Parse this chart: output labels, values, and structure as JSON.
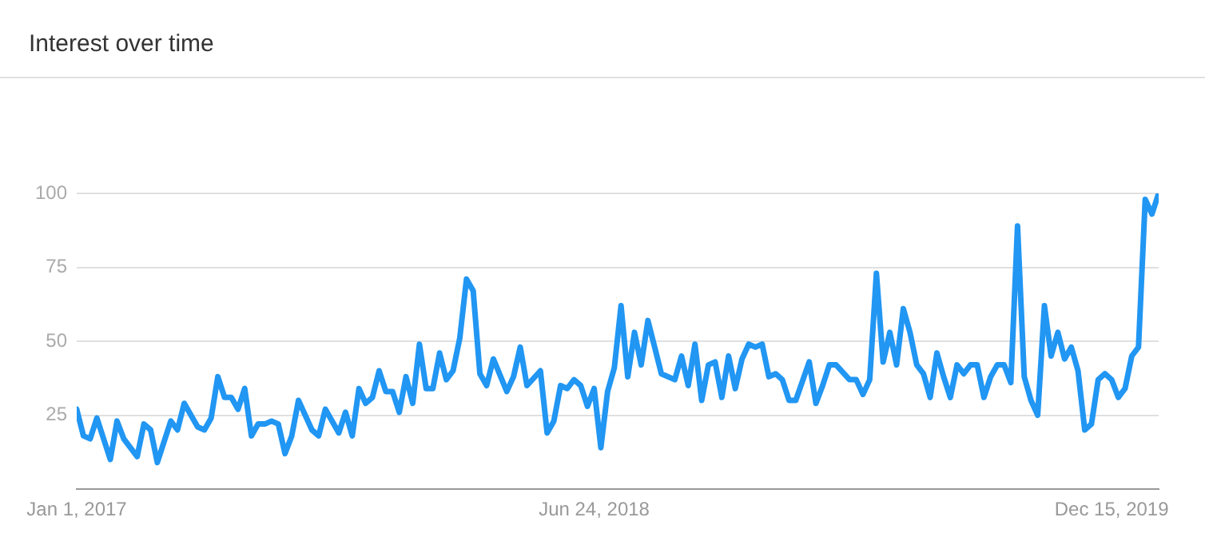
{
  "chart_data": {
    "type": "line",
    "title": "Interest over time",
    "color": "#2196f3",
    "marker": "none",
    "grid": "y",
    "x": [
      "2017-01-01",
      "2017-01-08",
      "2017-01-15",
      "2017-01-22",
      "2017-02-05",
      "2017-02-12",
      "2017-02-19",
      "2017-03-05",
      "2017-03-12",
      "2017-03-19",
      "2017-03-26",
      "2017-04-09",
      "2017-04-16",
      "2017-04-23",
      "2017-05-07",
      "2017-05-14",
      "2017-05-21",
      "2017-05-28",
      "2017-06-04",
      "2017-06-11",
      "2017-06-18",
      "2017-06-25",
      "2017-07-02",
      "2017-07-09",
      "2017-07-16",
      "2017-07-23",
      "2017-07-30",
      "2017-08-06",
      "2017-08-13",
      "2017-08-20",
      "2017-09-03",
      "2017-09-10",
      "2017-09-17",
      "2017-10-01",
      "2017-10-08",
      "2017-10-15",
      "2017-10-22",
      "2017-10-29",
      "2017-11-05",
      "2017-11-12",
      "2017-11-19",
      "2017-11-26",
      "2017-12-03",
      "2017-12-10",
      "2017-12-17",
      "2017-12-24",
      "2017-12-31",
      "2018-01-07",
      "2018-01-14",
      "2018-01-21",
      "2018-01-28",
      "2018-02-04",
      "2018-02-11",
      "2018-02-18",
      "2018-02-25",
      "2018-03-04",
      "2018-03-11",
      "2018-03-25",
      "2018-04-01",
      "2018-04-08",
      "2018-04-15",
      "2018-04-29",
      "2018-05-06",
      "2018-05-13",
      "2018-05-20",
      "2018-05-27",
      "2018-06-03",
      "2018-06-10",
      "2018-06-17",
      "2018-06-24",
      "2018-07-01",
      "2018-07-08",
      "2018-07-15",
      "2018-07-22",
      "2018-07-29",
      "2018-08-05",
      "2018-08-12",
      "2018-08-19",
      "2018-09-02",
      "2018-09-16",
      "2018-09-23",
      "2018-09-30",
      "2018-10-07",
      "2018-10-14",
      "2018-10-21",
      "2018-10-28",
      "2018-11-04",
      "2018-11-11",
      "2018-11-18",
      "2018-11-25",
      "2018-12-02",
      "2018-12-09",
      "2018-12-16",
      "2018-12-23",
      "2018-12-30",
      "2019-01-06",
      "2019-01-13",
      "2019-01-20",
      "2019-02-03",
      "2019-02-10",
      "2019-02-17",
      "2019-02-24",
      "2019-03-03",
      "2019-03-17",
      "2019-03-24",
      "2019-03-31",
      "2019-04-07",
      "2019-04-14",
      "2019-04-21",
      "2019-04-28",
      "2019-05-05",
      "2019-05-12",
      "2019-05-19",
      "2019-05-26",
      "2019-06-02",
      "2019-06-09",
      "2019-06-16",
      "2019-06-23",
      "2019-06-30",
      "2019-07-07",
      "2019-07-14",
      "2019-07-21",
      "2019-07-28",
      "2019-08-04",
      "2019-08-11",
      "2019-08-18",
      "2019-08-25",
      "2019-09-01",
      "2019-09-08",
      "2019-09-15",
      "2019-09-22",
      "2019-09-29",
      "2019-10-06",
      "2019-10-13",
      "2019-10-20",
      "2019-10-27",
      "2019-11-03",
      "2019-11-10",
      "2019-11-17",
      "2019-11-24",
      "2019-12-01",
      "2019-12-08",
      "2019-12-15",
      "2019-12-22",
      "2019-12-29",
      "2020-01-05",
      "2020-01-12",
      "2020-01-19",
      "2020-01-26",
      "2020-02-02"
    ],
    "values": [
      27,
      18,
      17,
      24,
      10,
      23,
      17,
      11,
      22,
      20,
      9,
      23,
      20,
      29,
      21,
      20,
      24,
      38,
      31,
      31,
      27,
      34,
      18,
      22,
      22,
      23,
      22,
      12,
      18,
      30,
      20,
      18,
      27,
      19,
      26,
      18,
      34,
      29,
      31,
      40,
      33,
      33,
      26,
      38,
      29,
      49,
      34,
      34,
      46,
      37,
      40,
      51,
      71,
      67,
      39,
      35,
      44,
      33,
      38,
      48,
      35,
      40,
      19,
      23,
      35,
      34,
      37,
      35,
      28,
      34,
      14,
      33,
      41,
      62,
      38,
      53,
      42,
      57,
      39,
      37,
      45,
      35,
      49,
      30,
      42,
      43,
      31,
      45,
      34,
      44,
      49,
      48,
      49,
      38,
      39,
      37,
      30,
      30,
      43,
      29,
      35,
      42,
      42,
      37,
      37,
      32,
      37,
      73,
      43,
      53,
      42,
      61,
      53,
      42,
      39,
      31,
      46,
      38,
      31,
      42,
      39,
      42,
      42,
      31,
      38,
      42,
      42,
      36,
      89,
      38,
      30,
      25,
      62,
      45,
      53,
      44,
      48,
      40,
      20,
      22,
      37,
      39,
      37,
      31,
      34,
      45,
      48,
      98,
      93,
      100
    ],
    "xlim": [
      "2017-01-01",
      "2020-02-02"
    ],
    "xticks": [
      {
        "value": "2017-01-01",
        "label": "Jan 1, 2017"
      },
      {
        "value": "2018-06-24",
        "label": "Jun 24, 2018"
      },
      {
        "value": "2019-12-15",
        "label": "Dec 15, 2019"
      }
    ],
    "ylim": [
      0,
      100
    ],
    "yticks": [
      25,
      50,
      75,
      100
    ]
  }
}
